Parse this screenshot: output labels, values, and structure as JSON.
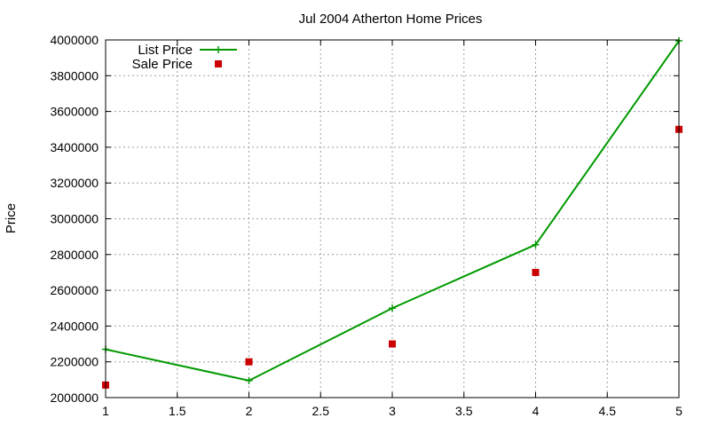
{
  "chart_data": {
    "type": "line",
    "title": "Jul 2004 Atherton Home Prices",
    "xlabel": "",
    "ylabel": "Price",
    "xlim": [
      1,
      5
    ],
    "ylim": [
      2000000,
      4000000
    ],
    "x_ticks": [
      1,
      1.5,
      2,
      2.5,
      3,
      3.5,
      4,
      4.5,
      5
    ],
    "x_tick_labels": [
      "1",
      "1.5",
      "2",
      "2.5",
      "3",
      "3.5",
      "4",
      "4.5",
      "5"
    ],
    "y_ticks": [
      2000000,
      2200000,
      2400000,
      2600000,
      2800000,
      3000000,
      3200000,
      3400000,
      3600000,
      3800000,
      4000000
    ],
    "y_tick_labels": [
      "2000000",
      "2200000",
      "2400000",
      "2600000",
      "2800000",
      "3000000",
      "3200000",
      "3400000",
      "3600000",
      "3800000",
      "4000000"
    ],
    "grid": true,
    "legend_position": "top-left",
    "series": [
      {
        "name": "List Price",
        "style": "linespoints",
        "marker": "plus",
        "color": "#009900",
        "x": [
          1,
          2,
          3,
          4,
          5
        ],
        "y": [
          2270000,
          2095000,
          2500000,
          2855000,
          3995000
        ]
      },
      {
        "name": "Sale Price",
        "style": "points",
        "marker": "square",
        "color": "#cc0000",
        "x": [
          1,
          2,
          3,
          4,
          5
        ],
        "y": [
          2070000,
          2200000,
          2300000,
          2700000,
          3500000
        ]
      }
    ]
  }
}
